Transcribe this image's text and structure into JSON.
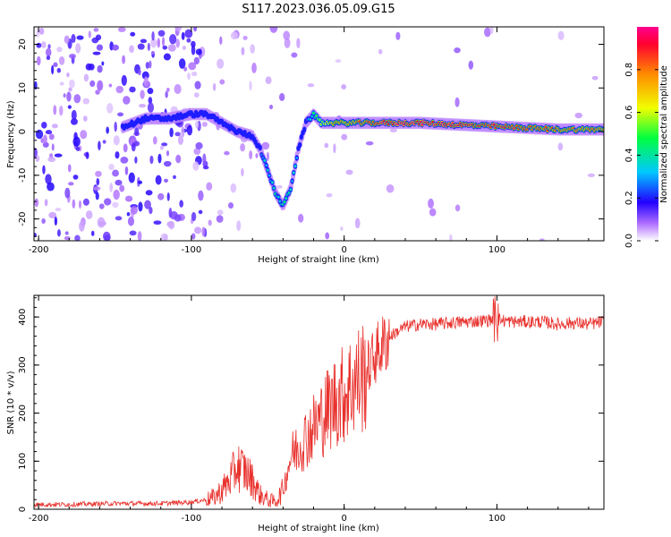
{
  "title": "S117.2023.036.05.09.G15",
  "colors": {
    "snr_line": "#e8302c",
    "colormap": [
      "#ffffff",
      "#7a00d9",
      "#2200ff",
      "#00c8ff",
      "#00ff40",
      "#f0ff00",
      "#ff8a00",
      "#ff0030"
    ]
  },
  "chart_data": [
    {
      "type": "heatmap",
      "title": "",
      "xlabel": "Height of straight line (km)",
      "ylabel": "Frequency (Hz)",
      "xlim": [
        -203,
        170
      ],
      "ylim": [
        -25,
        24
      ],
      "xticks": [
        -200,
        -100,
        0,
        100
      ],
      "yticks": [
        -20,
        -10,
        0,
        10,
        20
      ],
      "colorbar": {
        "label": "Normalized spectral amplitude",
        "range": [
          0.0,
          1.0
        ],
        "ticks": [
          0.0,
          0.2,
          0.4,
          0.6,
          0.8
        ]
      },
      "ridge": {
        "x": [
          -145,
          -130,
          -115,
          -100,
          -90,
          -80,
          -70,
          -60,
          -55,
          -50,
          -45,
          -40,
          -35,
          -30,
          -25,
          -20,
          -15,
          -10,
          0,
          20,
          50,
          80,
          110,
          140,
          170
        ],
        "freq": [
          1,
          3,
          3,
          4,
          4,
          2,
          0,
          -1,
          -4,
          -9,
          -14,
          -17,
          -13,
          -4,
          2,
          4,
          2,
          2,
          2,
          2,
          2,
          1.5,
          1,
          0.5,
          0.5
        ],
        "amplitude": [
          0.2,
          0.25,
          0.25,
          0.3,
          0.3,
          0.25,
          0.3,
          0.3,
          0.3,
          0.35,
          0.4,
          0.4,
          0.35,
          0.3,
          0.3,
          0.4,
          0.6,
          0.7,
          0.75,
          0.9,
          0.95,
          0.9,
          0.9,
          0.8,
          0.8
        ]
      }
    },
    {
      "type": "line",
      "title": "",
      "xlabel": "Height of straight line (km)",
      "ylabel": "SNR (10 * v/v)",
      "xlim": [
        -203,
        170
      ],
      "ylim": [
        0,
        445
      ],
      "xticks": [
        -200,
        -100,
        0,
        100
      ],
      "yticks": [
        0,
        100,
        200,
        300,
        400
      ],
      "series": [
        {
          "x": [
            -203,
            -180,
            -150,
            -120,
            -100,
            -90,
            -85,
            -80,
            -75,
            -70,
            -65,
            -60,
            -55,
            -50,
            -45,
            -40,
            -35,
            -30,
            -25,
            -20,
            -15,
            -10,
            -5,
            0,
            5,
            10,
            15,
            20,
            25,
            30,
            35,
            40,
            50,
            60,
            70,
            80,
            90,
            100,
            110,
            120,
            130,
            140,
            150,
            160,
            170
          ],
          "values": [
            10,
            10,
            12,
            12,
            15,
            20,
            25,
            40,
            60,
            90,
            80,
            60,
            30,
            20,
            15,
            40,
            110,
            130,
            150,
            170,
            190,
            210,
            230,
            240,
            260,
            270,
            290,
            320,
            340,
            360,
            370,
            380,
            385,
            385,
            388,
            390,
            392,
            395,
            390,
            390,
            390,
            385,
            388,
            385,
            390
          ]
        }
      ]
    }
  ]
}
